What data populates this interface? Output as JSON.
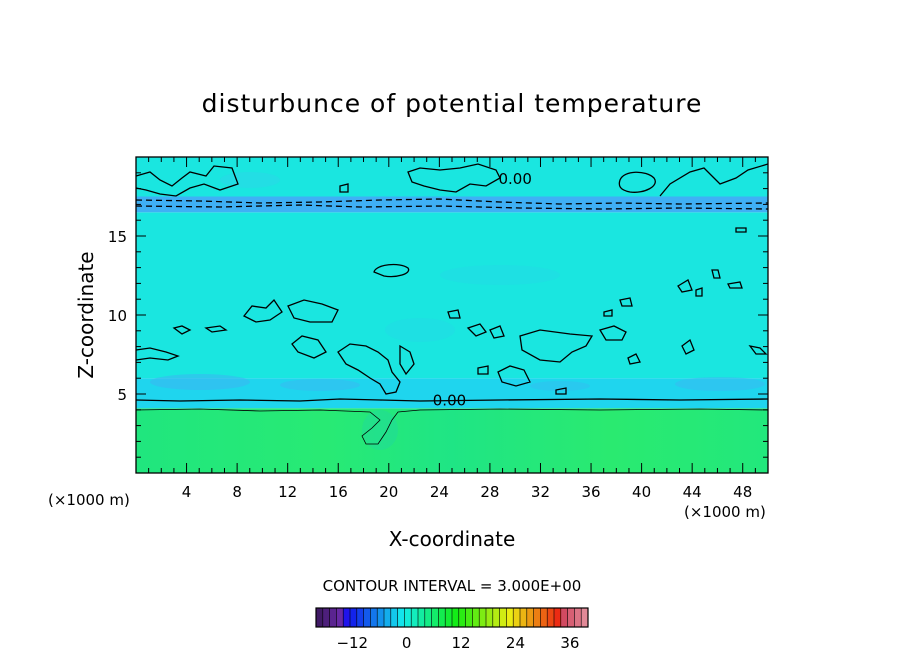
{
  "chart_data": {
    "type": "heatmap",
    "title": "disturbunce of potential temperature",
    "xlabel": "X-coordinate",
    "ylabel": "Z-coordinate",
    "x_unit_label": "(×1000 m)",
    "x_unit_label_right": "(×1000 m)",
    "xlim": [
      0,
      50
    ],
    "ylim": [
      0,
      20
    ],
    "x_ticks": [
      4,
      8,
      12,
      16,
      20,
      24,
      28,
      32,
      36,
      40,
      44,
      48
    ],
    "y_ticks": [
      5,
      10,
      15
    ],
    "contour_interval_label": "CONTOUR INTERVAL = 3.000E+00",
    "contour_labels": [
      {
        "text": "0.00",
        "x": 30.0,
        "y": 18.6
      },
      {
        "text": "0.00",
        "x": 24.8,
        "y": 4.6
      }
    ],
    "zero_contour_level_z": 4.7,
    "colorbar": {
      "min": -20,
      "max": 40,
      "ticks": [
        -12,
        0,
        12,
        24,
        36
      ]
    },
    "field_bands": [
      {
        "z_from": 0,
        "z_to": 4.1,
        "value": 9,
        "color": "#22e87a"
      },
      {
        "z_from": 4.1,
        "z_to": 6.0,
        "value": 1,
        "color": "#1fd5ee"
      },
      {
        "z_from": 6.0,
        "z_to": 16.5,
        "value": 0,
        "color": "#1ae6e0"
      },
      {
        "z_from": 16.5,
        "z_to": 17.5,
        "value": -3,
        "color": "#3fb0f5"
      },
      {
        "z_from": 17.5,
        "z_to": 20,
        "value": 0,
        "color": "#1ae6e0"
      }
    ]
  },
  "colors": {
    "frame": "#000000",
    "contour": "#000000"
  }
}
